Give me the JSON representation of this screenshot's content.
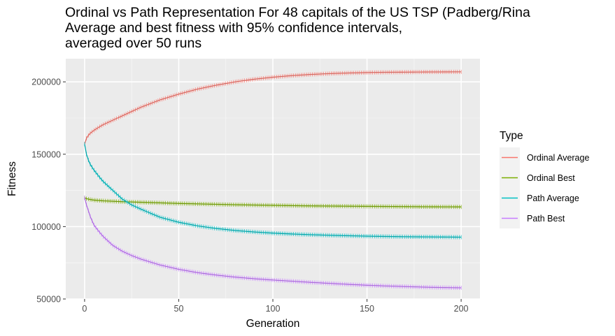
{
  "chart_data": {
    "type": "line",
    "title_lines": [
      "Ordinal vs Path Representation For 48 capitals of the US TSP (Padberg/Rina",
      "Average and best fitness with 95% confidence intervals,",
      "averaged over 50 runs"
    ],
    "xlabel": "Generation",
    "ylabel": "Fitness",
    "xlim": [
      -10,
      210
    ],
    "ylim": [
      50000,
      216000
    ],
    "x_ticks": [
      0,
      50,
      100,
      150,
      200
    ],
    "x_tick_labels": [
      "0",
      "50",
      "100",
      "150",
      "200"
    ],
    "y_ticks": [
      50000,
      100000,
      150000,
      200000
    ],
    "y_tick_labels": [
      "50000",
      "100000",
      "150000",
      "200000"
    ],
    "grid": true,
    "legend": {
      "title": "Type",
      "position": "right"
    },
    "x_anchors": [
      0,
      1,
      2,
      3,
      5,
      8,
      10,
      15,
      20,
      25,
      30,
      40,
      50,
      60,
      70,
      80,
      90,
      100,
      110,
      120,
      130,
      140,
      150,
      160,
      170,
      180,
      190,
      200
    ],
    "series": [
      {
        "name": "Ordinal Average",
        "color": "#f8766d",
        "values": [
          157000,
          161000,
          163000,
          164500,
          166500,
          169000,
          170500,
          173500,
          176500,
          179500,
          182500,
          187500,
          191500,
          195000,
          197700,
          200000,
          201800,
          203200,
          204300,
          205100,
          205700,
          206100,
          206400,
          206600,
          206700,
          206800,
          206850,
          206900
        ]
      },
      {
        "name": "Ordinal Best",
        "color": "#7cae00",
        "values": [
          120000,
          119300,
          119000,
          118700,
          118300,
          118000,
          117800,
          117500,
          117200,
          117000,
          116800,
          116400,
          116000,
          115700,
          115400,
          115100,
          114900,
          114700,
          114500,
          114300,
          114200,
          114100,
          114000,
          113900,
          113800,
          113700,
          113650,
          113600
        ]
      },
      {
        "name": "Path Average",
        "color": "#00bfc4",
        "values": [
          157000,
          150000,
          146000,
          143000,
          139000,
          134000,
          131000,
          125000,
          119000,
          115000,
          112000,
          106500,
          103000,
          100500,
          98700,
          97300,
          96300,
          95500,
          94900,
          94400,
          94000,
          93700,
          93400,
          93200,
          93000,
          92900,
          92800,
          92700
        ]
      },
      {
        "name": "Path Best",
        "color": "#c77cff",
        "values": [
          120000,
          115000,
          111000,
          107000,
          101000,
          96000,
          93000,
          87000,
          83000,
          80000,
          77500,
          73500,
          70500,
          68200,
          66500,
          65100,
          64000,
          63100,
          62300,
          61500,
          60800,
          60100,
          59500,
          59000,
          58600,
          58200,
          57900,
          57700
        ]
      }
    ]
  }
}
